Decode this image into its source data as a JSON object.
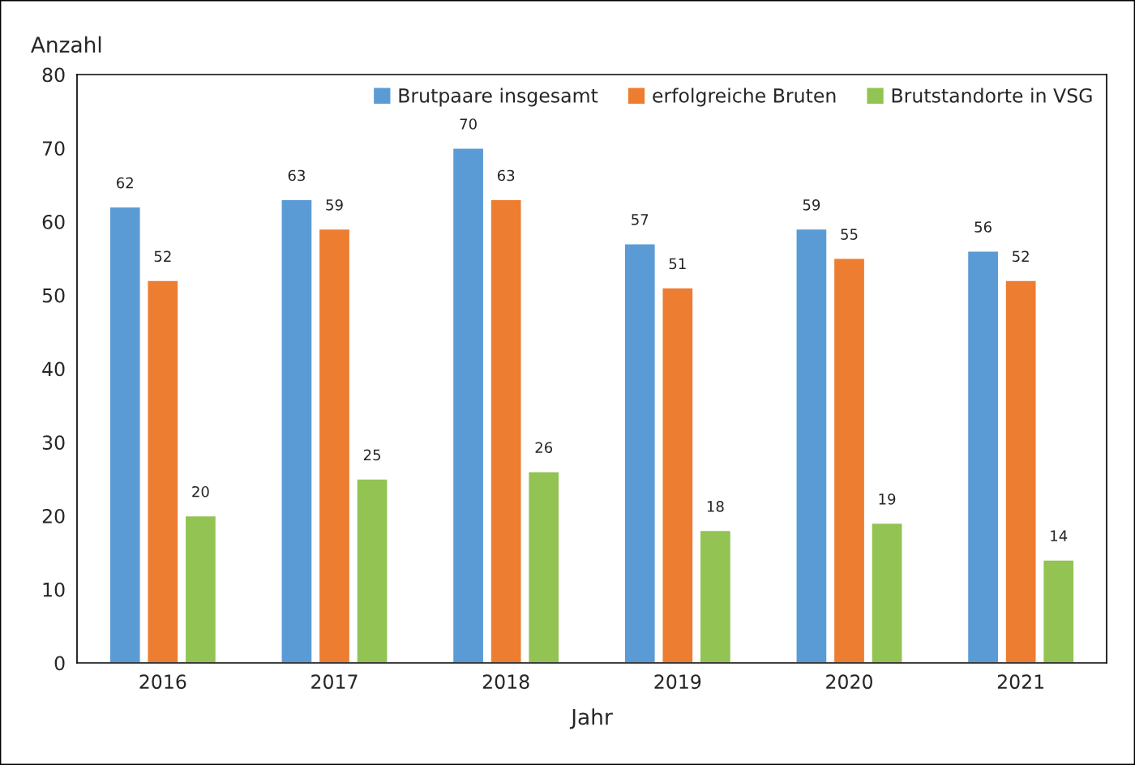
{
  "chart_data": {
    "type": "bar",
    "xlabel": "Jahr",
    "ylabel": "Anzahl",
    "categories": [
      "2016",
      "2017",
      "2018",
      "2019",
      "2020",
      "2021"
    ],
    "series": [
      {
        "name": "Brutpaare insgesamt",
        "color": "#5b9bd5",
        "values": [
          62,
          63,
          70,
          57,
          59,
          56
        ]
      },
      {
        "name": "erfolgreiche Bruten",
        "color": "#ed7d31",
        "values": [
          52,
          59,
          63,
          51,
          55,
          52
        ]
      },
      {
        "name": "Brutstandorte in VSG",
        "color": "#92c353",
        "values": [
          20,
          25,
          26,
          18,
          19,
          14
        ]
      }
    ],
    "ylim": [
      0,
      80
    ],
    "yticks": [
      0,
      10,
      20,
      30,
      40,
      50,
      60,
      70,
      80
    ],
    "data_labels": true,
    "grid": false,
    "legend": "top right"
  }
}
